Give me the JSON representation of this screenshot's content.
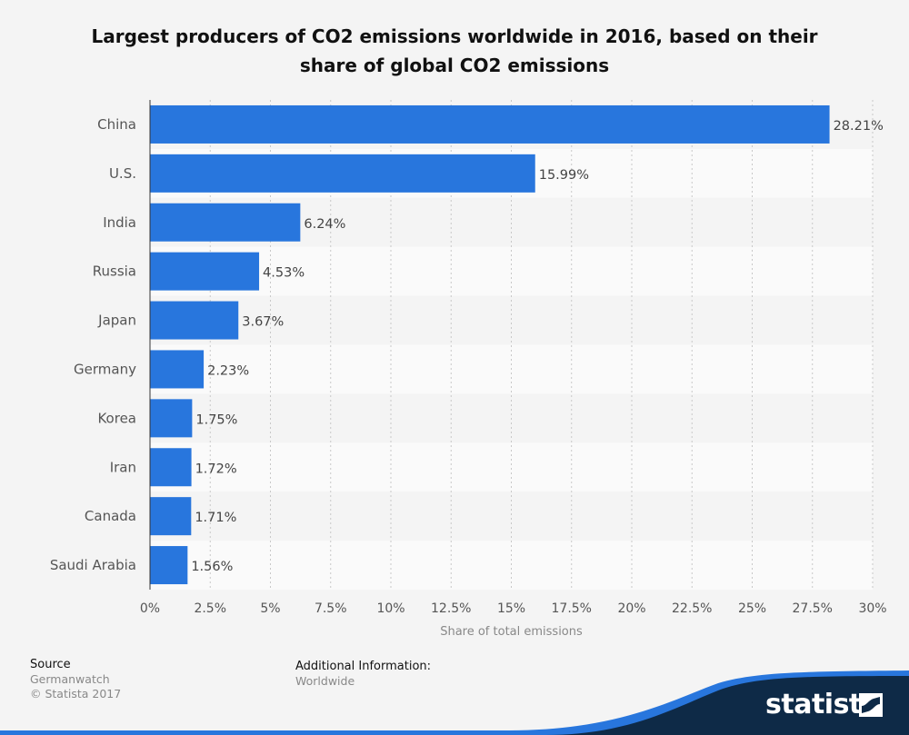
{
  "title_line1": "Largest producers of CO2 emissions worldwide in 2016, based on their",
  "title_line2": "share of global CO2 emissions",
  "chart_data": {
    "type": "bar",
    "orientation": "horizontal",
    "categories": [
      "China",
      "U.S.",
      "India",
      "Russia",
      "Japan",
      "Germany",
      "Korea",
      "Iran",
      "Canada",
      "Saudi Arabia"
    ],
    "values": [
      28.21,
      15.99,
      6.24,
      4.53,
      3.67,
      2.23,
      1.75,
      1.72,
      1.71,
      1.56
    ],
    "value_labels": [
      "28.21%",
      "15.99%",
      "6.24%",
      "4.53%",
      "3.67%",
      "2.23%",
      "1.75%",
      "1.72%",
      "1.71%",
      "1.56%"
    ],
    "xlabel": "Share of total emissions",
    "xlim": [
      0,
      30
    ],
    "xticks": [
      0,
      2.5,
      5,
      7.5,
      10,
      12.5,
      15,
      17.5,
      20,
      22.5,
      25,
      27.5,
      30
    ],
    "xtick_labels": [
      "0%",
      "2.5%",
      "5%",
      "7.5%",
      "10%",
      "12.5%",
      "15%",
      "17.5%",
      "20%",
      "22.5%",
      "25%",
      "27.5%",
      "30%"
    ],
    "grid": "vertical dotted",
    "bar_color": "#2876dd"
  },
  "footer": {
    "source_heading": "Source",
    "source_name": "Germanwatch",
    "copyright": "© Statista 2017",
    "info_heading": "Additional Information:",
    "info_value": "Worldwide"
  },
  "brand": {
    "name": "statista",
    "logo_icon": "statista-flag-icon",
    "dark_color": "#0e2a47",
    "accent_color": "#2876dd"
  }
}
